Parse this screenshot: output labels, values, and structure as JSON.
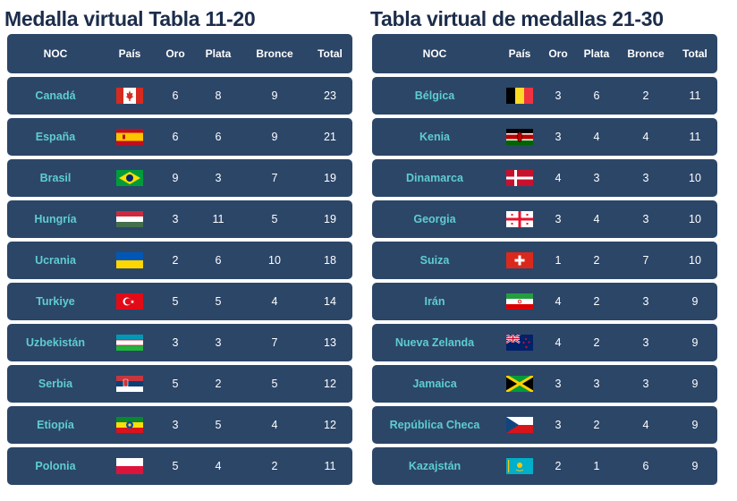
{
  "left": {
    "title": "Medalla virtual Tabla 11-20",
    "headers": [
      "NOC",
      "País",
      "Oro",
      "Plata",
      "Bronce",
      "Total"
    ],
    "rows": [
      {
        "noc": "Canadá",
        "flag": "canada-flag-icon",
        "oro": "6",
        "plata": "8",
        "bronce": "9",
        "total": "23"
      },
      {
        "noc": "España",
        "flag": "spain-flag-icon",
        "oro": "6",
        "plata": "6",
        "bronce": "9",
        "total": "21"
      },
      {
        "noc": "Brasil",
        "flag": "brazil-flag-icon",
        "oro": "9",
        "plata": "3",
        "bronce": "7",
        "total": "19"
      },
      {
        "noc": "Hungría",
        "flag": "hungary-flag-icon",
        "oro": "3",
        "plata": "11",
        "bronce": "5",
        "total": "19"
      },
      {
        "noc": "Ucrania",
        "flag": "ukraine-flag-icon",
        "oro": "2",
        "plata": "6",
        "bronce": "10",
        "total": "18"
      },
      {
        "noc": "Turkiye",
        "flag": "turkiye-flag-icon",
        "oro": "5",
        "plata": "5",
        "bronce": "4",
        "total": "14"
      },
      {
        "noc": "Uzbekistán",
        "flag": "uzbekistan-flag-icon",
        "oro": "3",
        "plata": "3",
        "bronce": "7",
        "total": "13"
      },
      {
        "noc": "Serbia",
        "flag": "serbia-flag-icon",
        "oro": "5",
        "plata": "2",
        "bronce": "5",
        "total": "12"
      },
      {
        "noc": "Etiopía",
        "flag": "ethiopia-flag-icon",
        "oro": "3",
        "plata": "5",
        "bronce": "4",
        "total": "12"
      },
      {
        "noc": "Polonia",
        "flag": "poland-flag-icon",
        "oro": "5",
        "plata": "4",
        "bronce": "2",
        "total": "11"
      }
    ]
  },
  "right": {
    "title": "Tabla virtual de medallas 21-30",
    "headers": [
      "NOC",
      "País",
      "Oro",
      "Plata",
      "Bronce",
      "Total"
    ],
    "rows": [
      {
        "noc": "Bélgica",
        "flag": "belgium-flag-icon",
        "oro": "3",
        "plata": "6",
        "bronce": "2",
        "total": "11"
      },
      {
        "noc": "Kenia",
        "flag": "kenya-flag-icon",
        "oro": "3",
        "plata": "4",
        "bronce": "4",
        "total": "11"
      },
      {
        "noc": "Dinamarca",
        "flag": "denmark-flag-icon",
        "oro": "4",
        "plata": "3",
        "bronce": "3",
        "total": "10"
      },
      {
        "noc": "Georgia",
        "flag": "georgia-flag-icon",
        "oro": "3",
        "plata": "4",
        "bronce": "3",
        "total": "10"
      },
      {
        "noc": "Suiza",
        "flag": "switzerland-flag-icon",
        "oro": "1",
        "plata": "2",
        "bronce": "7",
        "total": "10"
      },
      {
        "noc": "Irán",
        "flag": "iran-flag-icon",
        "oro": "4",
        "plata": "2",
        "bronce": "3",
        "total": "9"
      },
      {
        "noc": "Nueva Zelanda",
        "flag": "new-zealand-flag-icon",
        "oro": "4",
        "plata": "2",
        "bronce": "3",
        "total": "9"
      },
      {
        "noc": "Jamaica",
        "flag": "jamaica-flag-icon",
        "oro": "3",
        "plata": "3",
        "bronce": "3",
        "total": "9"
      },
      {
        "noc": "República Checa",
        "flag": "czech-republic-flag-icon",
        "oro": "3",
        "plata": "2",
        "bronce": "4",
        "total": "9"
      },
      {
        "noc": "Kazajstán",
        "flag": "kazakhstan-flag-icon",
        "oro": "2",
        "plata": "1",
        "bronce": "6",
        "total": "9"
      }
    ]
  },
  "colors": {
    "title": "#1c2d4b",
    "row_background": "#2c4668",
    "country_name": "#5ecdd1",
    "cell_text": "#ffffff"
  }
}
